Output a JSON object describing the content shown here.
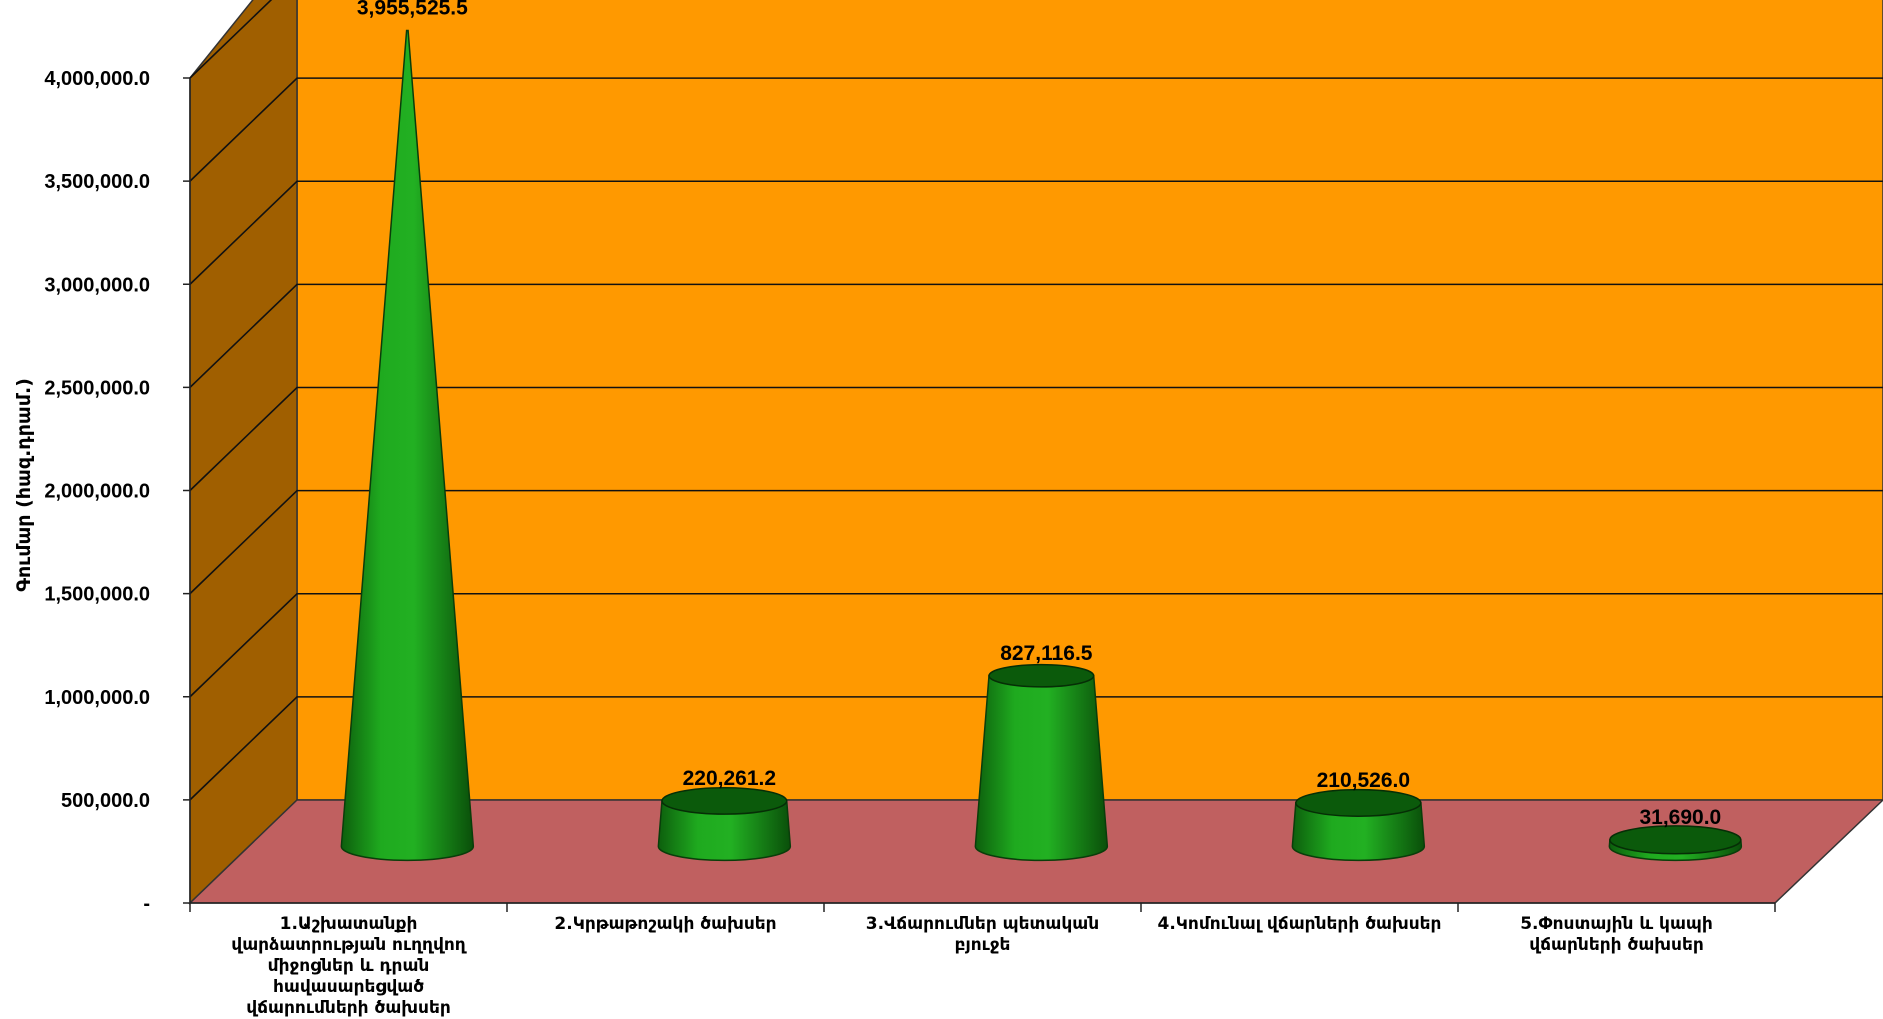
{
  "chart_data": {
    "type": "bar",
    "style": "3d-cone",
    "categories": [
      "1.Աշխատանքի վարձատրության ուղղվող միջոցներ և դրան հավասարեցված վճարումների ծախսեր",
      "2.Կրթաթոշակի ծախսեր",
      "3.Վճարումներ պետական բյուջե",
      "4.Կոմունալ վճարների ծախսեր",
      "5.Փոստային և կապի վճարների ծախսեր"
    ],
    "values": [
      3955525.5,
      220261.2,
      827116.5,
      210526.0,
      31690.0
    ],
    "value_labels": [
      "3,955,525.5",
      "220,261.2",
      "827,116.5",
      "210,526.0",
      "31,690.0"
    ],
    "ylabel": "Գումար (հազ.դրամ.)",
    "ylim": [
      0,
      4000000
    ],
    "yticks": [
      0,
      500000,
      1000000,
      1500000,
      2000000,
      2500000,
      3000000,
      3500000,
      4000000
    ],
    "ytick_labels": [
      "-",
      "500,000.0",
      "1,000,000.0",
      "1,500,000.0",
      "2,000,000.0",
      "2,500,000.0",
      "3,000,000.0",
      "3,500,000.0",
      "4,000,000.0"
    ],
    "grid": true,
    "legend": "none",
    "colors": {
      "back_wall": "#FF9900",
      "side_wall": "#A05F00",
      "floor": "#C06060",
      "series": "#1A9C1A",
      "series_dark": "#0B5A0B"
    }
  }
}
